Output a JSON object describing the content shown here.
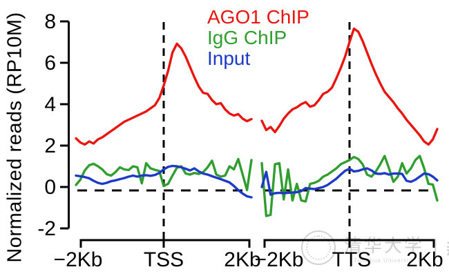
{
  "chart_data": {
    "type": "line",
    "title": "",
    "ylabel": "Normalized reads (RP10M)",
    "ylim": [
      -2,
      8
    ],
    "yticks": [
      -2,
      0,
      2,
      4,
      6,
      8
    ],
    "grid": false,
    "legend_position": "top-center",
    "x_description": "Two panels of gene metaprofile, each spanning -2Kb to +2Kb around the reference point; points evenly spaced",
    "annotations": {
      "horizontal_dashed_line_at": 0,
      "vertical_dashed_line_at": "panel center (TSS / TTS)"
    },
    "panels": [
      {
        "name": "TSS",
        "x_range_kb": [
          -2,
          2
        ],
        "xticklabels": [
          "−2Kb",
          "TSS",
          "2Kb"
        ],
        "series": [
          {
            "name": "AGO1 ChIP",
            "color": "#e9140d",
            "values": [
              2.35,
              2.15,
              2.05,
              2.2,
              2.1,
              2.3,
              2.4,
              2.55,
              2.7,
              2.85,
              3.0,
              3.15,
              3.25,
              3.35,
              3.45,
              3.55,
              3.65,
              3.8,
              3.95,
              4.3,
              4.9,
              5.6,
              6.5,
              6.92,
              6.7,
              6.3,
              5.8,
              5.3,
              4.85,
              4.55,
              4.5,
              4.2,
              4.0,
              4.05,
              3.75,
              3.55,
              3.45,
              3.52,
              3.3,
              3.18,
              3.28
            ]
          },
          {
            "name": "IgG ChIP",
            "color": "#2f9e2f",
            "values": [
              0.1,
              0.35,
              0.8,
              1.05,
              1.12,
              1.0,
              0.85,
              0.62,
              0.55,
              0.72,
              0.95,
              0.85,
              0.82,
              1.0,
              0.95,
              0.18,
              1.15,
              0.9,
              0.83,
              0.77,
              0.05,
              0.15,
              0.55,
              0.93,
              1.0,
              0.65,
              0.6,
              0.68,
              0.63,
              0.72,
              0.95,
              1.27,
              0.6,
              0.5,
              0.55,
              1.0,
              0.85,
              1.35,
              0.6,
              -0.15,
              1.3
            ]
          },
          {
            "name": "Input",
            "color": "#1c39c8",
            "values": [
              0.55,
              0.52,
              0.48,
              0.42,
              0.3,
              0.2,
              0.15,
              0.2,
              0.28,
              0.32,
              0.38,
              0.43,
              0.5,
              0.55,
              0.5,
              0.55,
              0.57,
              0.54,
              0.58,
              0.68,
              0.85,
              0.97,
              1.02,
              1.0,
              0.95,
              0.88,
              0.8,
              0.9,
              0.75,
              0.65,
              0.6,
              0.52,
              0.45,
              0.38,
              0.3,
              0.22,
              0.05,
              -0.15,
              -0.32,
              -0.45,
              -0.5
            ]
          }
        ]
      },
      {
        "name": "TTS",
        "x_range_kb": [
          -2,
          2
        ],
        "xticklabels": [
          "−2Kb",
          "TTS",
          "2Kb"
        ],
        "series": [
          {
            "name": "AGO1 ChIP",
            "color": "#e9140d",
            "values": [
              3.2,
              2.75,
              2.9,
              2.65,
              2.95,
              3.3,
              3.55,
              3.75,
              3.85,
              4.0,
              4.1,
              3.88,
              3.95,
              4.2,
              4.5,
              4.6,
              4.8,
              5.25,
              5.75,
              6.3,
              7.0,
              7.65,
              7.5,
              7.05,
              6.5,
              5.95,
              5.45,
              5.0,
              4.6,
              4.35,
              4.1,
              3.8,
              3.55,
              3.25,
              3.0,
              2.75,
              2.5,
              2.2,
              2.05,
              2.3,
              2.8
            ]
          },
          {
            "name": "IgG ChIP",
            "color": "#2f9e2f",
            "values": [
              1.15,
              -1.4,
              -1.35,
              1.1,
              1.15,
              -0.6,
              0.85,
              -0.65,
              0.15,
              -0.65,
              -0.7,
              0.15,
              0.2,
              0.3,
              0.5,
              0.6,
              0.75,
              0.9,
              1.1,
              1.2,
              1.3,
              1.45,
              1.35,
              1.1,
              0.6,
              0.5,
              0.75,
              1.1,
              1.5,
              0.9,
              0.25,
              0.5,
              1.15,
              0.65,
              0.9,
              1.3,
              1.5,
              0.9,
              0.15,
              0.12,
              -0.65
            ]
          },
          {
            "name": "Input",
            "color": "#1c39c8",
            "values": [
              0.0,
              0.73,
              -0.37,
              -0.3,
              -0.28,
              -0.3,
              -0.28,
              -0.27,
              -0.25,
              -0.2,
              -0.05,
              -0.08,
              -0.1,
              -0.05,
              0.0,
              0.1,
              0.25,
              0.4,
              0.6,
              0.78,
              0.88,
              0.75,
              0.78,
              0.85,
              0.9,
              0.8,
              0.65,
              0.63,
              0.67,
              0.6,
              0.65,
              0.65,
              0.63,
              0.3,
              0.25,
              0.35,
              0.5,
              0.65,
              0.62,
              0.5,
              0.32
            ]
          }
        ]
      }
    ]
  },
  "legend": {
    "items": [
      {
        "label": "AGO1 ChIP",
        "color": "#e9140d"
      },
      {
        "label": "IgG ChIP",
        "color": "#2f9e2f"
      },
      {
        "label": "Input",
        "color": "#1c39c8"
      }
    ]
  },
  "watermark": {
    "university": "清华大学",
    "university_en": "Tsinghua University",
    "divider": "|",
    "label": "新闻"
  }
}
